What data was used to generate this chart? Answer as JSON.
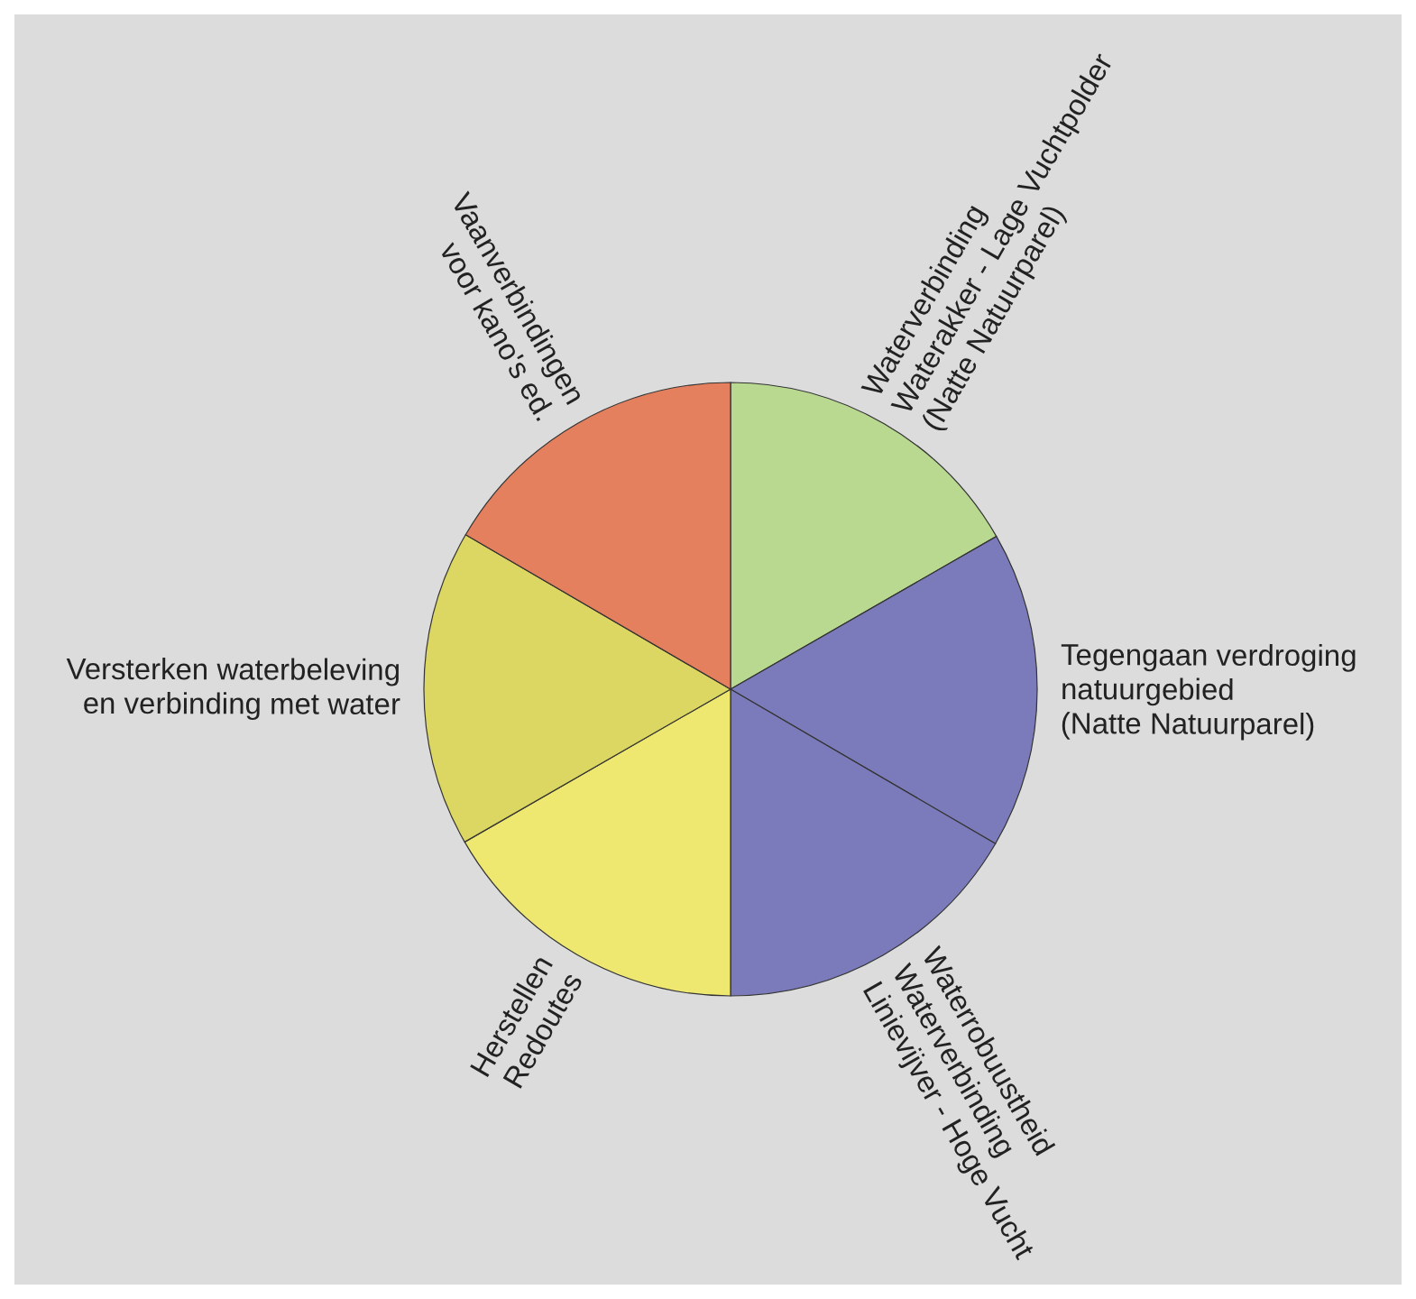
{
  "chart_data": {
    "type": "pie",
    "categories": [
      "Waterverbinding\nWaterakker - Lage Vuchtpolder\n(Natte Natuurparel)",
      "Tegengaan verdroging\nnatuurgebied\n(Natte Natuurparel)",
      "Waterrobuustheid\nWaterverbinding\nLinievijver - Hoge Vucht",
      "Herstellen\nRedoutes",
      "Versterken waterbeleving\nen verbinding met water",
      "Vaanverbindingen\nvoor kano's ed."
    ],
    "values": [
      16.7,
      16.7,
      16.6,
      16.7,
      16.7,
      16.6
    ],
    "colors": [
      "#b8d98f",
      "#7b7bbb",
      "#7b7bbb",
      "#eee870",
      "#dcd662",
      "#e5805e"
    ],
    "legend": false
  }
}
